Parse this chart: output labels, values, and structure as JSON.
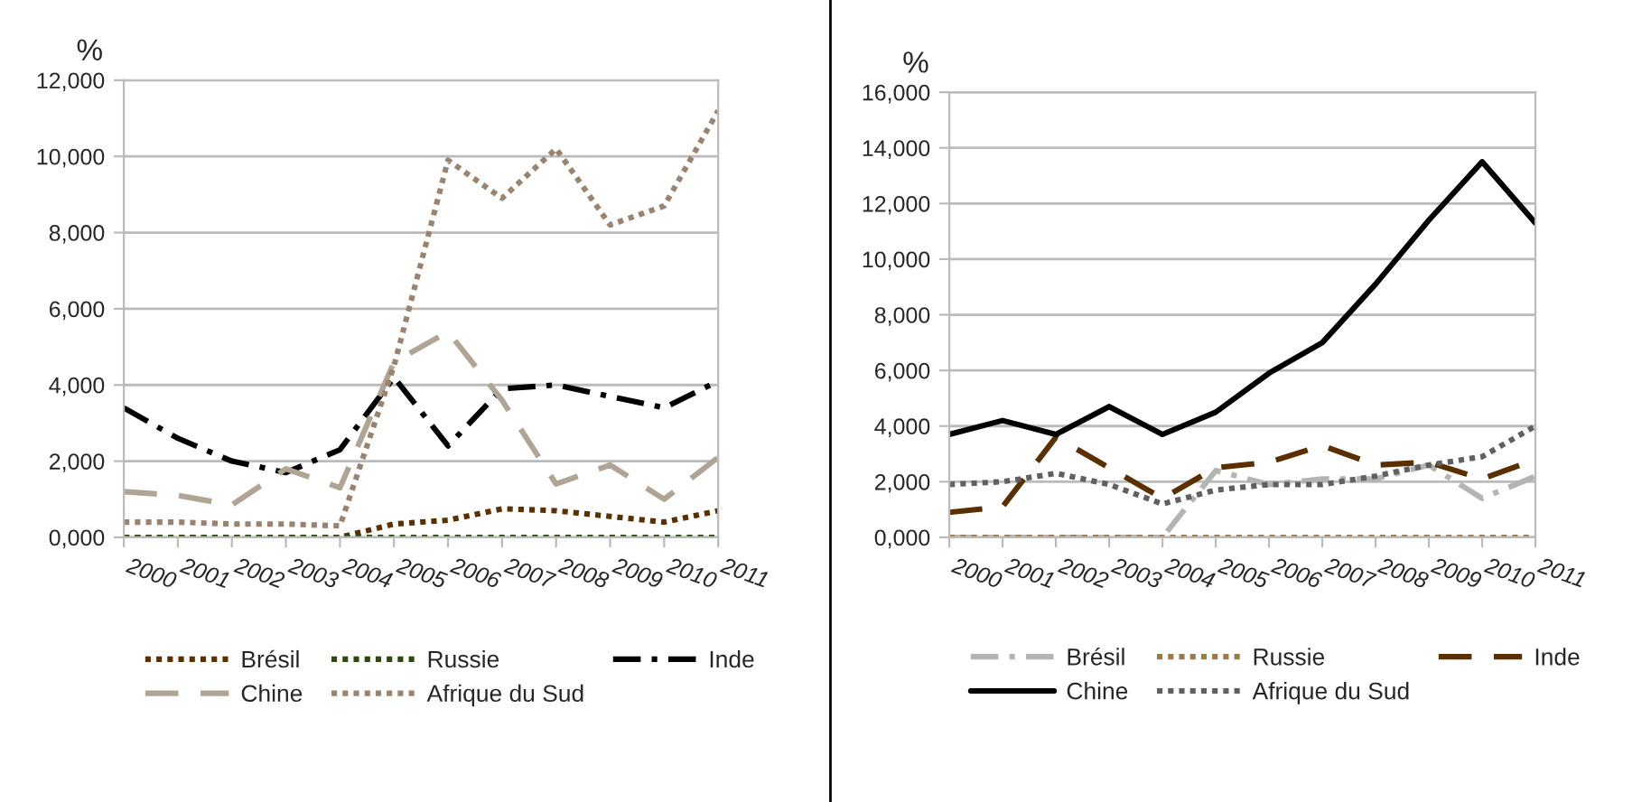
{
  "chart_data": [
    {
      "type": "line",
      "ylabel": "%",
      "categories": [
        "2000",
        "2001",
        "2002",
        "2003",
        "2004",
        "2005",
        "2006",
        "2007",
        "2008",
        "2009",
        "2010",
        "2011"
      ],
      "series": [
        {
          "name": "Brésil",
          "color": "#5a3000",
          "line_style": "dotted",
          "values": [
            0,
            0,
            0,
            0,
            0,
            0.35,
            0.45,
            0.75,
            0.7,
            0.55,
            0.4,
            0.7
          ]
        },
        {
          "name": "Russie",
          "color": "#2f4a10",
          "line_style": "dotted",
          "values": [
            0,
            0,
            0,
            0,
            0,
            0,
            0,
            0,
            0,
            0,
            0,
            0
          ]
        },
        {
          "name": "Inde",
          "color": "#000000",
          "line_style": "dashdot",
          "values": [
            3.4,
            2.6,
            2.0,
            1.7,
            2.3,
            4.2,
            2.4,
            3.9,
            4.0,
            3.7,
            3.4,
            4.1
          ]
        },
        {
          "name": "Chine",
          "color": "#b0a595",
          "line_style": "dashed",
          "values": [
            1.2,
            1.1,
            0.85,
            1.8,
            1.3,
            4.6,
            5.4,
            3.6,
            1.4,
            1.9,
            1.0,
            2.1
          ]
        },
        {
          "name": "Afrique du Sud",
          "color": "#9a8470",
          "line_style": "dotted",
          "values": [
            0.4,
            0.4,
            0.35,
            0.35,
            0.3,
            4.5,
            9.9,
            8.9,
            10.2,
            8.2,
            8.7,
            11.2
          ]
        }
      ],
      "ylim": [
        0,
        12
      ],
      "yticks": [
        {
          "value": 0,
          "label": "0,000"
        },
        {
          "value": 2,
          "label": "2,000"
        },
        {
          "value": 4,
          "label": "4,000"
        },
        {
          "value": 6,
          "label": "6,000"
        },
        {
          "value": 8,
          "label": "8,000"
        },
        {
          "value": 10,
          "label": "10,000"
        },
        {
          "value": 12,
          "label": "12,000"
        }
      ],
      "grid": "y",
      "legend": "bottom"
    },
    {
      "type": "line",
      "ylabel": "%",
      "categories": [
        "2000",
        "2001",
        "2002",
        "2003",
        "2004",
        "2005",
        "2006",
        "2007",
        "2008",
        "2009",
        "2010",
        "2011"
      ],
      "series": [
        {
          "name": "Brésil",
          "color": "#b4b4b4",
          "line_style": "dashdot",
          "values": [
            0,
            0,
            0,
            0,
            0,
            2.4,
            1.9,
            2.1,
            2.1,
            2.6,
            1.4,
            2.2
          ]
        },
        {
          "name": "Russie",
          "color": "#9a7a50",
          "line_style": "dotted",
          "values": [
            0,
            0,
            0,
            0,
            0,
            0,
            0,
            0,
            0,
            0,
            0,
            0
          ]
        },
        {
          "name": "Inde",
          "color": "#5a3000",
          "line_style": "dashed",
          "values": [
            0.9,
            1.1,
            3.6,
            2.5,
            1.4,
            2.5,
            2.7,
            3.3,
            2.6,
            2.7,
            2.1,
            2.8
          ]
        },
        {
          "name": "Chine",
          "color": "#000000",
          "line_style": "solid",
          "values": [
            3.7,
            4.2,
            3.7,
            4.7,
            3.7,
            4.5,
            5.9,
            7.0,
            9.1,
            11.4,
            13.5,
            11.3
          ]
        },
        {
          "name": "Afrique du Sud",
          "color": "#606060",
          "line_style": "dotted",
          "values": [
            1.9,
            2.0,
            2.3,
            1.9,
            1.2,
            1.7,
            1.9,
            1.9,
            2.2,
            2.6,
            2.9,
            4.0
          ]
        }
      ],
      "ylim": [
        0,
        16
      ],
      "yticks": [
        {
          "value": 0,
          "label": "0,000"
        },
        {
          "value": 2,
          "label": "2,000"
        },
        {
          "value": 4,
          "label": "4,000"
        },
        {
          "value": 6,
          "label": "6,000"
        },
        {
          "value": 8,
          "label": "8,000"
        },
        {
          "value": 10,
          "label": "10,000"
        },
        {
          "value": 12,
          "label": "12,000"
        },
        {
          "value": 14,
          "label": "14,000"
        },
        {
          "value": 16,
          "label": "16,000"
        }
      ],
      "grid": "y",
      "legend": "bottom"
    }
  ]
}
